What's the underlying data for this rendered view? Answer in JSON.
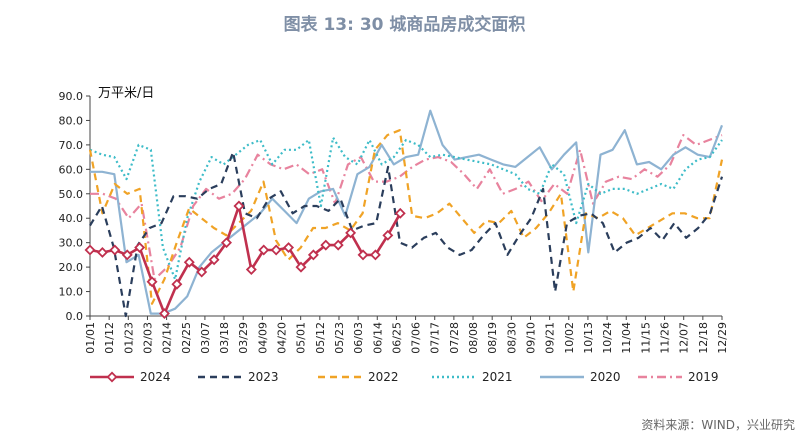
{
  "header": {
    "title": "图表 13: 30 城商品房成交面积",
    "unit": "万平米/日",
    "source": "资料来源：WIND，兴业研究"
  },
  "chart_data": {
    "type": "line",
    "title": "图表 13: 30 城商品房成交面积",
    "ylabel": "万平米/日",
    "ylim": [
      0,
      90
    ],
    "yticks": [
      "0.0",
      "10.0",
      "20.0",
      "30.0",
      "40.0",
      "50.0",
      "60.0",
      "70.0",
      "80.0",
      "90.0"
    ],
    "x_tick_labels": [
      "01/01",
      "01/12",
      "01/23",
      "02/03",
      "02/14",
      "02/25",
      "03/07",
      "03/18",
      "03/29",
      "04/09",
      "04/20",
      "05/01",
      "05/12",
      "05/23",
      "06/03",
      "06/14",
      "06/25",
      "07/06",
      "07/17",
      "07/28",
      "08/08",
      "08/19",
      "08/30",
      "09/10",
      "09/21",
      "10/02",
      "10/13",
      "10/24",
      "11/04",
      "11/15",
      "11/26",
      "12/07",
      "12/18",
      "12/29"
    ],
    "legend_position": "bottom",
    "series": [
      {
        "name": "2024",
        "color": "#c0304e",
        "style": "solid-diamond",
        "values": [
          27,
          26,
          27,
          25,
          28,
          14,
          1,
          13,
          22,
          18,
          23,
          30,
          45,
          19,
          27,
          27,
          28,
          20,
          25,
          29,
          29,
          34,
          25,
          25,
          33,
          42
        ]
      },
      {
        "name": "2023",
        "color": "#2b3e5c",
        "style": "dashed",
        "values": [
          37,
          45,
          28,
          0,
          29,
          36,
          38,
          49,
          49,
          48,
          52,
          54,
          67,
          42,
          40,
          48,
          51,
          42,
          45,
          45,
          43,
          48,
          35,
          37,
          38,
          61,
          30,
          28,
          32,
          34,
          28,
          25,
          27,
          33,
          38,
          25,
          33,
          40,
          52,
          10,
          38,
          41,
          42,
          38,
          26,
          30,
          32,
          36,
          31,
          38,
          32,
          36,
          42,
          57
        ]
      },
      {
        "name": "2022",
        "color": "#f0a326",
        "style": "dashed",
        "values": [
          68,
          42,
          54,
          50,
          52,
          5,
          15,
          30,
          44,
          40,
          36,
          33,
          38,
          43,
          55,
          31,
          23,
          28,
          36,
          36,
          38,
          35,
          42,
          68,
          74,
          76,
          41,
          40,
          42,
          46,
          40,
          34,
          39,
          38,
          43,
          32,
          36,
          42,
          50,
          10,
          42,
          40,
          43,
          40,
          33,
          36,
          39,
          42,
          42,
          40,
          40,
          64
        ]
      },
      {
        "name": "2021",
        "color": "#3dbcc8",
        "style": "dotted",
        "values": [
          68,
          66,
          65,
          56,
          70,
          68,
          28,
          15,
          40,
          55,
          65,
          62,
          66,
          70,
          72,
          62,
          68,
          68,
          72,
          45,
          73,
          65,
          62,
          72,
          62,
          65,
          72,
          70,
          65,
          66,
          65,
          64,
          63,
          62,
          60,
          58,
          52,
          50,
          62,
          58,
          38,
          54,
          50,
          52,
          52,
          50,
          52,
          54,
          52,
          60,
          64,
          65,
          72
        ]
      },
      {
        "name": "2020",
        "color": "#8eb3d2",
        "style": "solid",
        "values": [
          59,
          59,
          58,
          22,
          25,
          1,
          1,
          3,
          8,
          20,
          26,
          30,
          34,
          38,
          42,
          48,
          43,
          38,
          48,
          51,
          52,
          41,
          58,
          61,
          70,
          62,
          65,
          66,
          84,
          70,
          64,
          65,
          66,
          64,
          62,
          61,
          65,
          69,
          60,
          66,
          71,
          26,
          66,
          68,
          76,
          62,
          63,
          60,
          66,
          69,
          66,
          65,
          78
        ]
      },
      {
        "name": "2019",
        "color": "#e8839e",
        "style": "dashdot",
        "values": [
          50,
          50,
          48,
          40,
          46,
          15,
          20,
          28,
          45,
          52,
          48,
          50,
          56,
          66,
          62,
          60,
          62,
          58,
          60,
          46,
          62,
          65,
          55,
          55,
          57,
          61,
          64,
          65,
          63,
          58,
          52,
          60,
          50,
          52,
          55,
          47,
          54,
          50,
          68,
          46,
          55,
          57,
          56,
          60,
          57,
          62,
          74,
          70,
          72,
          74
        ]
      }
    ]
  }
}
